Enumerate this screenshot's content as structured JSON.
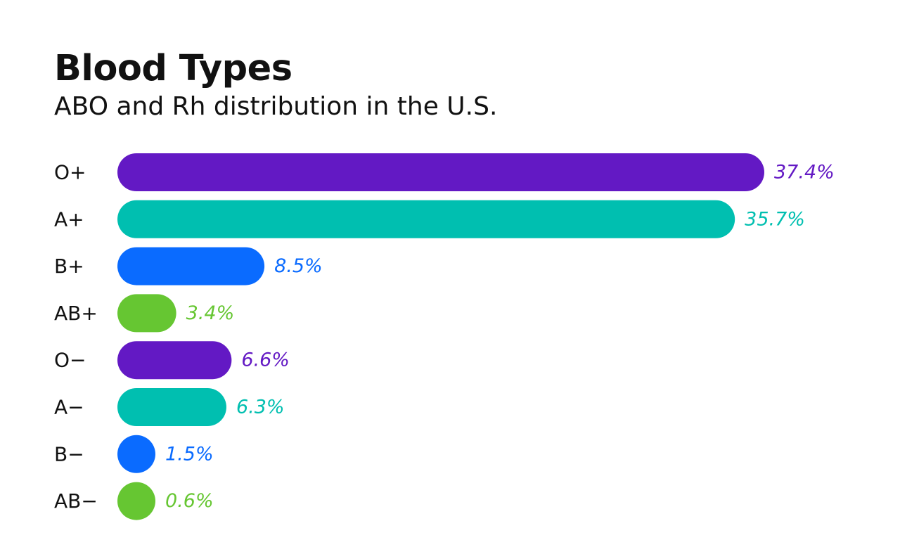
{
  "chart_data": {
    "type": "bar",
    "orientation": "horizontal",
    "title": "Blood Types",
    "subtitle": "ABO and Rh distribution in the U.S.",
    "categories": [
      "O+",
      "A+",
      "B+",
      "AB+",
      "O−",
      "A−",
      "B−",
      "AB−"
    ],
    "values": [
      37.4,
      35.7,
      8.5,
      3.4,
      6.6,
      6.3,
      1.5,
      0.6
    ],
    "value_labels": [
      "37.4%",
      "35.7%",
      "8.5%",
      "3.4%",
      "6.6%",
      "6.3%",
      "1.5%",
      "0.6%"
    ],
    "colors": [
      "#6319C4",
      "#00BFB0",
      "#0A6BFF",
      "#66C632",
      "#6319C4",
      "#00BFB0",
      "#0A6BFF",
      "#66C632"
    ],
    "unit": "%",
    "xlim": [
      0,
      37.4
    ],
    "grid": false,
    "legend": "none"
  }
}
